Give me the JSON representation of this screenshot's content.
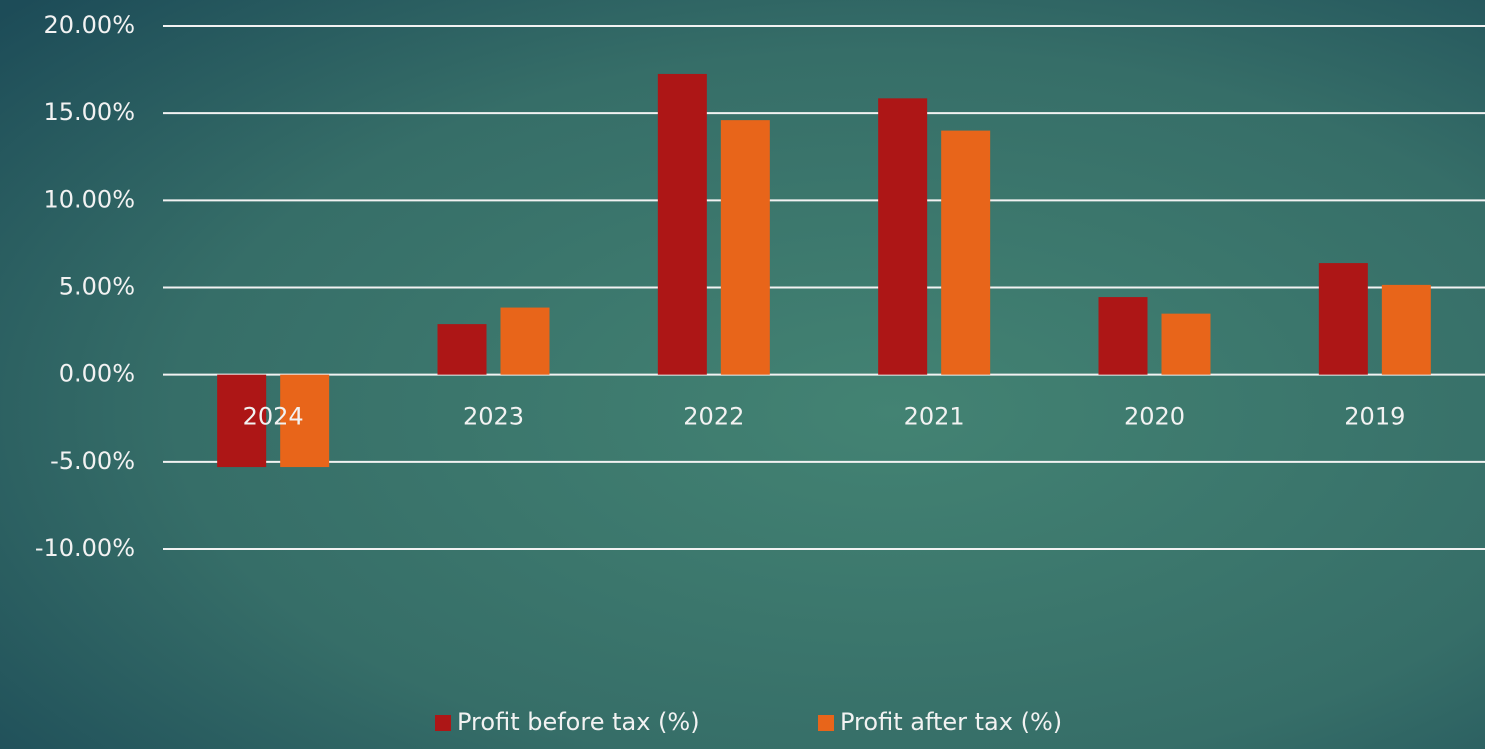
{
  "chart_data": {
    "type": "bar",
    "categories": [
      "2024",
      "2023",
      "2022",
      "2021",
      "2020",
      "2019"
    ],
    "series": [
      {
        "name": "Profit before tax (%)",
        "color": "#ad1616",
        "values": [
          -5.3,
          2.9,
          17.25,
          15.85,
          4.45,
          6.4
        ]
      },
      {
        "name": "Profit after tax (%)",
        "color": "#e8651a",
        "values": [
          -5.3,
          3.85,
          14.6,
          14.0,
          3.5,
          5.15
        ]
      }
    ],
    "ylim": [
      -10,
      20
    ],
    "yticks": [
      {
        "value": -10,
        "label": "-10.00%"
      },
      {
        "value": -5,
        "label": "-5.00%"
      },
      {
        "value": 0,
        "label": "0.00%"
      },
      {
        "value": 5,
        "label": "5.00%"
      },
      {
        "value": 10,
        "label": "10.00%"
      },
      {
        "value": 15,
        "label": "15.00%"
      },
      {
        "value": 20,
        "label": "20.00%"
      }
    ],
    "grid": true,
    "legend": "bottom"
  }
}
